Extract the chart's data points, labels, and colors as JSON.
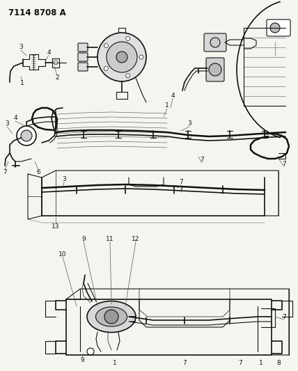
{
  "title": "7114 8708 A",
  "bg_color": "#f5f5f0",
  "line_color": "#111111",
  "title_fontsize": 8.5,
  "fig_width": 4.28,
  "fig_height": 5.33,
  "dpi": 100
}
